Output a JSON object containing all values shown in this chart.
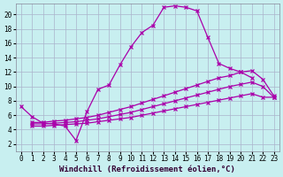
{
  "xlabel": "Windchill (Refroidissement éolien,°C)",
  "background_color": "#c8eff0",
  "grid_color": "#aab4cc",
  "line_color": "#aa00aa",
  "xlim": [
    -0.5,
    23.5
  ],
  "ylim": [
    1.0,
    21.5
  ],
  "xticks": [
    0,
    1,
    2,
    3,
    4,
    5,
    6,
    7,
    8,
    9,
    10,
    11,
    12,
    13,
    14,
    15,
    16,
    17,
    18,
    19,
    20,
    21,
    22,
    23
  ],
  "yticks": [
    2,
    4,
    6,
    8,
    10,
    12,
    14,
    16,
    18,
    20
  ],
  "curve1_x": [
    0,
    1,
    2,
    3,
    4,
    5,
    6,
    7,
    8,
    9,
    10,
    11,
    12,
    13,
    14,
    15,
    16,
    17,
    18,
    19,
    20,
    21
  ],
  "curve1_y": [
    7.2,
    5.8,
    4.9,
    4.8,
    4.5,
    2.5,
    6.5,
    9.6,
    10.2,
    13.0,
    15.5,
    17.5,
    18.5,
    21.0,
    21.2,
    21.0,
    20.5,
    16.8,
    13.2,
    12.5,
    12.0,
    11.2
  ],
  "curve2_x": [
    1,
    2,
    3,
    4,
    5,
    6,
    7,
    8,
    9,
    10,
    11,
    12,
    13,
    14,
    15,
    16,
    17,
    18,
    19,
    20,
    21,
    22,
    23
  ],
  "curve2_y": [
    5.0,
    5.0,
    5.2,
    5.3,
    5.5,
    5.7,
    6.0,
    6.4,
    6.8,
    7.2,
    7.7,
    8.2,
    8.7,
    9.2,
    9.7,
    10.2,
    10.7,
    11.2,
    11.5,
    12.0,
    12.2,
    11.0,
    8.7
  ],
  "curve3_x": [
    1,
    2,
    3,
    4,
    5,
    6,
    7,
    8,
    9,
    10,
    11,
    12,
    13,
    14,
    15,
    16,
    17,
    18,
    19,
    20,
    21,
    22,
    23
  ],
  "curve3_y": [
    4.8,
    4.8,
    4.9,
    5.0,
    5.1,
    5.3,
    5.5,
    5.8,
    6.1,
    6.4,
    6.8,
    7.2,
    7.6,
    8.0,
    8.4,
    8.8,
    9.2,
    9.6,
    10.0,
    10.3,
    10.6,
    10.0,
    8.5
  ],
  "curve4_x": [
    1,
    2,
    3,
    4,
    5,
    6,
    7,
    8,
    9,
    10,
    11,
    12,
    13,
    14,
    15,
    16,
    17,
    18,
    19,
    20,
    21,
    22,
    23
  ],
  "curve4_y": [
    4.5,
    4.5,
    4.6,
    4.7,
    4.8,
    4.9,
    5.1,
    5.3,
    5.5,
    5.7,
    6.0,
    6.3,
    6.6,
    6.9,
    7.2,
    7.5,
    7.8,
    8.1,
    8.4,
    8.7,
    9.0,
    8.5,
    8.5
  ],
  "tick_fontsize": 5.5,
  "xlabel_fontsize": 6.5
}
